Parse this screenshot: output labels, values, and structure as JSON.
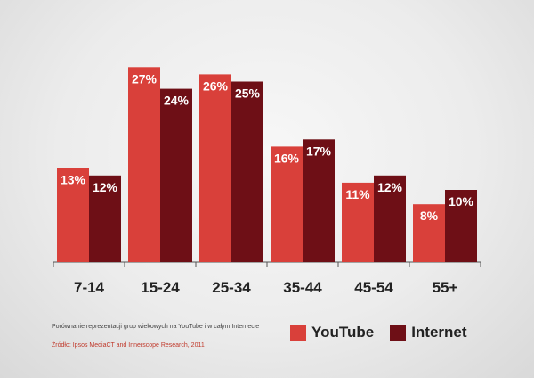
{
  "chart_data": {
    "type": "bar",
    "categories": [
      "7-14",
      "15-24",
      "25-34",
      "35-44",
      "45-54",
      "55+"
    ],
    "series": [
      {
        "name": "YouTube",
        "values": [
          13,
          27,
          26,
          16,
          11,
          8
        ],
        "color": "#d9403a"
      },
      {
        "name": "Internet",
        "values": [
          12,
          24,
          25,
          17,
          12,
          10
        ],
        "color": "#6e0f16"
      }
    ],
    "value_suffix": "%",
    "ylim": [
      0,
      30
    ],
    "grid": false,
    "legend_position": "bottom-right"
  },
  "caption": "Porównanie reprezentacji grup wiekowych na YouTube i w całym Internecie",
  "source": "Źródło: Ipsos MediaCT and Innerscope Research, 2011",
  "legend": {
    "youtube_label": "YouTube",
    "internet_label": "Internet"
  },
  "colors": {
    "youtube": "#d9403a",
    "internet": "#6e0f16",
    "axis": "#555555"
  }
}
